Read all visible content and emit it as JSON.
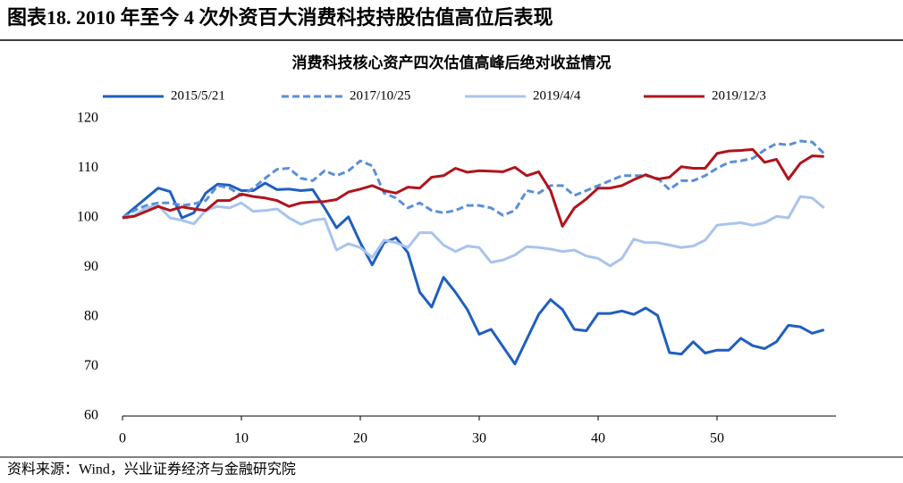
{
  "figure_title": "图表18.  2010 年至今 4 次外资百大消费科技持股估值高位后表现",
  "source": "资料来源：Wind，兴业证券经济与金融研究院",
  "chart_data": {
    "type": "line",
    "title": "消费科技核心资产四次估值高峰后绝对收益情况",
    "x": [
      0,
      1,
      2,
      3,
      4,
      5,
      6,
      7,
      8,
      9,
      10,
      11,
      12,
      13,
      14,
      15,
      16,
      17,
      18,
      19,
      20,
      21,
      22,
      23,
      24,
      25,
      26,
      27,
      28,
      29,
      30,
      31,
      32,
      33,
      34,
      35,
      36,
      37,
      38,
      39,
      40,
      41,
      42,
      43,
      44,
      45,
      46,
      47,
      48,
      49,
      50,
      51,
      52,
      53,
      54,
      55,
      56,
      57,
      58,
      59
    ],
    "xlim": [
      0,
      60
    ],
    "xticks": [
      0,
      10,
      20,
      30,
      40,
      50
    ],
    "ylim": [
      60,
      120
    ],
    "yticks": [
      60,
      70,
      80,
      90,
      100,
      110,
      120
    ],
    "grid": false,
    "legend": "top",
    "series": [
      {
        "name": "2015/5/21",
        "color": "#1f5fbf",
        "dash": false,
        "values": [
          100,
          102,
          104,
          106,
          105.3,
          100,
          101,
          105,
          106.8,
          106.6,
          105.5,
          105.5,
          107,
          105.7,
          105.8,
          105.5,
          105.7,
          102,
          98,
          100.2,
          95,
          90.5,
          95,
          96,
          93,
          85,
          82,
          88,
          85,
          81.5,
          76.5,
          77.5,
          74,
          70.5,
          75.5,
          80.5,
          83.5,
          81.5,
          77.5,
          77.2,
          80.7,
          80.7,
          81.2,
          80.5,
          81.8,
          80.3,
          72.8,
          72.5,
          75,
          72.7,
          73.3,
          73.3,
          75.7,
          74.2,
          73.6,
          75,
          78.3,
          78,
          76.7,
          77.4
        ]
      },
      {
        "name": "2017/10/25",
        "color": "#5b8fd9",
        "dash": true,
        "values": [
          100,
          101.5,
          102.5,
          103,
          103,
          102.5,
          102.8,
          103.5,
          106.5,
          106,
          104.5,
          106,
          108,
          109.8,
          110,
          108,
          107.5,
          109.5,
          108.5,
          109.5,
          111.5,
          110.5,
          105,
          104,
          102,
          103,
          101.5,
          101,
          101.5,
          102.5,
          102.5,
          102,
          100.5,
          101.5,
          105.5,
          105,
          106.5,
          106.5,
          104.5,
          105.5,
          106.5,
          107.5,
          108.5,
          108.5,
          108.5,
          108,
          105.7,
          107.5,
          107.5,
          108.5,
          110,
          111.2,
          111.5,
          112,
          113.7,
          115,
          114.7,
          115.5,
          115.3,
          113
        ]
      },
      {
        "name": "2019/4/4",
        "color": "#a9c4ec",
        "dash": false,
        "values": [
          100,
          100.5,
          102,
          102.5,
          100,
          99.5,
          98.8,
          101.5,
          102.3,
          102,
          103,
          101.3,
          101.5,
          101.8,
          100,
          98.7,
          99.5,
          99.8,
          93.5,
          94.8,
          94,
          92,
          95.5,
          95,
          94,
          97,
          97,
          94.5,
          93.2,
          94.3,
          94,
          91,
          91.5,
          92.5,
          94.2,
          94,
          93.7,
          93.2,
          93.5,
          92.3,
          91.8,
          90.3,
          91.8,
          95.7,
          95,
          95,
          94.5,
          94,
          94.3,
          95.5,
          98.5,
          98.8,
          99,
          98.5,
          99,
          100.3,
          100,
          104.3,
          104,
          102
        ]
      },
      {
        "name": "2019/12/3",
        "color": "#b0141c",
        "dash": false,
        "values": [
          100,
          100.3,
          101.3,
          102.3,
          101.5,
          102.2,
          101.8,
          101.5,
          103.5,
          103.5,
          104.8,
          104.3,
          104,
          103.5,
          102.3,
          103,
          103.2,
          103.3,
          103.7,
          105.2,
          105.8,
          106.5,
          105.5,
          105,
          106.2,
          106,
          108.2,
          108.5,
          110,
          109.2,
          109.5,
          109.4,
          109.3,
          110.2,
          108.5,
          109.3,
          105.5,
          98.3,
          102,
          103.8,
          106,
          106,
          106.5,
          107.7,
          108.7,
          107.8,
          108.2,
          110.3,
          110,
          110,
          113,
          113.5,
          113.6,
          113.8,
          111.2,
          111.8,
          107.8,
          111,
          112.5,
          112.4
        ]
      }
    ]
  }
}
